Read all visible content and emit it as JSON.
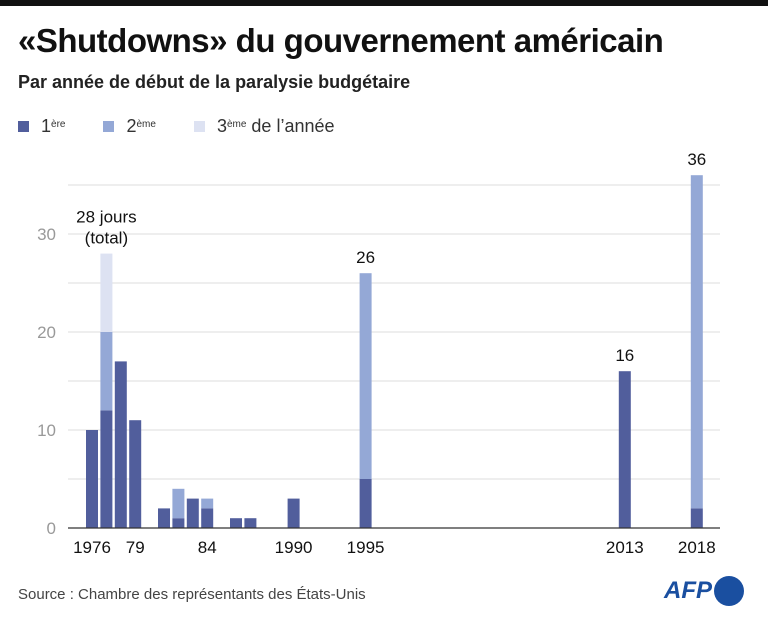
{
  "title": "«Shutdowns» du gouvernement américain",
  "subtitle": "Par année de début de la paralysie budgétaire",
  "legend": {
    "first": "1",
    "first_sup": "ère",
    "second": "2",
    "second_sup": "ème",
    "third": "3",
    "third_sup": "ème",
    "suffix": "de l’année"
  },
  "source": "Source : Chambre des représentants des États-Unis",
  "logo": "AFP",
  "colors": {
    "first": "#515e9c",
    "second": "#94a8d6",
    "third": "#dde2f2"
  },
  "chart_data": {
    "type": "bar",
    "stacked": true,
    "x": [
      1976,
      1977,
      1978,
      1979,
      1981,
      1982,
      1983,
      1984,
      1986,
      1987,
      1990,
      1995,
      2013,
      2018
    ],
    "series": [
      {
        "name": "1ère",
        "values": [
          10,
          12,
          17,
          11,
          2,
          1,
          3,
          2,
          1,
          1,
          3,
          5,
          16,
          2
        ]
      },
      {
        "name": "2ème",
        "values": [
          0,
          8,
          0,
          0,
          0,
          3,
          0,
          1,
          0,
          0,
          0,
          21,
          0,
          34
        ]
      },
      {
        "name": "3ème de l’année",
        "values": [
          0,
          8,
          0,
          0,
          0,
          0,
          0,
          0,
          0,
          0,
          0,
          0,
          0,
          0
        ]
      }
    ],
    "xticks": [
      {
        "year": 1976,
        "label": "1976"
      },
      {
        "year": 1979,
        "label": "79"
      },
      {
        "year": 1984,
        "label": "84"
      },
      {
        "year": 1990,
        "label": "1990"
      },
      {
        "year": 1995,
        "label": "1995"
      },
      {
        "year": 2013,
        "label": "2013"
      },
      {
        "year": 2018,
        "label": "2018"
      }
    ],
    "yticks": [
      0,
      10,
      20,
      30
    ],
    "ylim": [
      0,
      36
    ],
    "xlim": [
      1974.5,
      2019.5
    ],
    "grid": true,
    "annotations": [
      {
        "year": 1977,
        "lines": [
          "28 jours",
          "(total)"
        ]
      },
      {
        "year": 1995,
        "lines": [
          "26"
        ]
      },
      {
        "year": 2013,
        "lines": [
          "16"
        ]
      },
      {
        "year": 2018,
        "lines": [
          "36"
        ]
      }
    ]
  }
}
